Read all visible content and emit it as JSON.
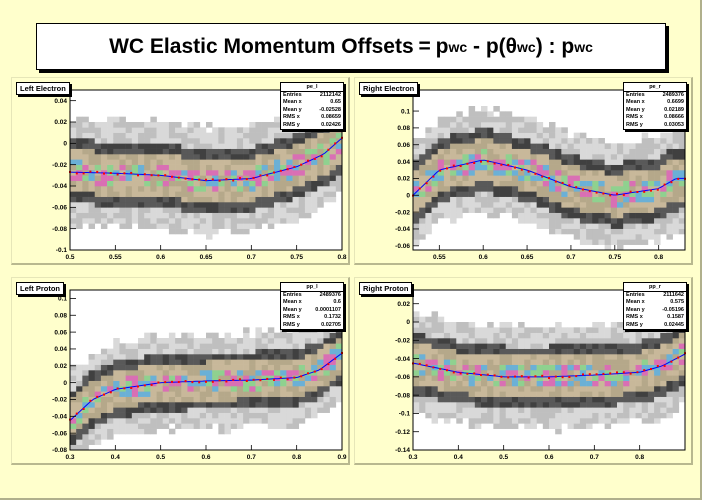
{
  "title": {
    "main": "WC Elastic Momentum Offsets",
    "eq": "=",
    "p1": "p",
    "s1": "wc",
    "minus": "- p(",
    "theta": "θ",
    "s2": "wc",
    "close": ") : p",
    "s3": "wc"
  },
  "pads": [
    {
      "label": "Left Electron",
      "stats": {
        "name": "pe_l",
        "rows": [
          [
            "Entries",
            "2112142"
          ],
          [
            "Mean x",
            "0.65"
          ],
          [
            "Mean y",
            "-0.02528"
          ],
          [
            "RMS x",
            "0.08659"
          ],
          [
            "RMS y",
            "0.02426"
          ]
        ]
      }
    },
    {
      "label": "Right Electron",
      "stats": {
        "name": "pe_r",
        "rows": [
          [
            "Entries",
            "2489376"
          ],
          [
            "Mean x",
            "0.6699"
          ],
          [
            "Mean y",
            "0.02189"
          ],
          [
            "RMS x",
            "0.08666"
          ],
          [
            "RMS y",
            "0.03053"
          ]
        ]
      }
    },
    {
      "label": "Left Proton",
      "stats": {
        "name": "pp_l",
        "rows": [
          [
            "Entries",
            "2489376"
          ],
          [
            "Mean x",
            "0.6"
          ],
          [
            "Mean y",
            "0.0001107"
          ],
          [
            "RMS x",
            "0.1732"
          ],
          [
            "RMS y",
            "0.02705"
          ]
        ]
      }
    },
    {
      "label": "Right Proton",
      "stats": {
        "name": "pp_r",
        "rows": [
          [
            "Entries",
            "2111642"
          ],
          [
            "Mean x",
            "0.575"
          ],
          [
            "Mean y",
            "-0.05196"
          ],
          [
            "RMS x",
            "0.1587"
          ],
          [
            "RMS y",
            "0.02445"
          ]
        ]
      }
    }
  ],
  "colors": {
    "fit": "#0000ff",
    "profile": "#ff0000",
    "low": "#c8c8c8",
    "mid": "#4d4d4d",
    "bg": "#ffffcc"
  },
  "chart_data": [
    {
      "type": "heatmap",
      "title": "Left Electron",
      "xlim": [
        0.5,
        0.8
      ],
      "ylim": [
        -0.1,
        0.05
      ],
      "xticks": [
        "0.5",
        "0.55",
        "0.6",
        "0.65",
        "0.7",
        "0.75",
        "0.8"
      ],
      "yticks": [
        "-0.1",
        "-0.08",
        "-0.06",
        "-0.04",
        "-0.02",
        "0",
        "0.02",
        "0.04"
      ],
      "xtickvals": [
        0.5,
        0.55,
        0.6,
        0.65,
        0.7,
        0.75,
        0.8
      ],
      "ytickvals": [
        -0.1,
        -0.08,
        -0.06,
        -0.04,
        -0.02,
        0,
        0.02,
        0.04
      ],
      "x0": 0.5,
      "x1": 0.8,
      "spread": 0.04,
      "trend_x": [
        0.5,
        0.55,
        0.6,
        0.65,
        0.7,
        0.75,
        0.78,
        0.8
      ],
      "trend_y": [
        -0.027,
        -0.028,
        -0.03,
        -0.035,
        -0.033,
        -0.022,
        -0.01,
        0.005
      ]
    },
    {
      "type": "heatmap",
      "title": "Right Electron",
      "xlim": [
        0.52,
        0.83
      ],
      "ylim": [
        -0.065,
        0.125
      ],
      "xticks": [
        "0.55",
        "0.6",
        "0.65",
        "0.7",
        "0.75",
        "0.8"
      ],
      "yticks": [
        "-0.06",
        "-0.04",
        "-0.02",
        "0",
        "0.02",
        "0.04",
        "0.06",
        "0.08",
        "0.1"
      ],
      "xtickvals": [
        0.55,
        0.6,
        0.65,
        0.7,
        0.75,
        0.8
      ],
      "ytickvals": [
        -0.06,
        -0.04,
        -0.02,
        0,
        0.02,
        0.04,
        0.06,
        0.08,
        0.1
      ],
      "x0": 0.52,
      "x1": 0.83,
      "spread": 0.05,
      "trend_x": [
        0.52,
        0.55,
        0.6,
        0.65,
        0.7,
        0.75,
        0.8,
        0.82
      ],
      "trend_y": [
        0.0,
        0.03,
        0.042,
        0.03,
        0.01,
        0.0,
        0.008,
        0.02
      ]
    },
    {
      "type": "heatmap",
      "title": "Left Proton",
      "xlim": [
        0.3,
        0.9
      ],
      "ylim": [
        -0.08,
        0.11
      ],
      "xticks": [
        "0.3",
        "0.4",
        "0.5",
        "0.6",
        "0.7",
        "0.8",
        "0.9"
      ],
      "yticks": [
        "-0.08",
        "-0.06",
        "-0.04",
        "-0.02",
        "0",
        "0.02",
        "0.04",
        "0.06",
        "0.08",
        "0.1"
      ],
      "xtickvals": [
        0.3,
        0.4,
        0.5,
        0.6,
        0.7,
        0.8,
        0.9
      ],
      "ytickvals": [
        -0.08,
        -0.06,
        -0.04,
        -0.02,
        0,
        0.02,
        0.04,
        0.06,
        0.08,
        0.1
      ],
      "x0": 0.3,
      "x1": 0.9,
      "spread": 0.045,
      "trend_x": [
        0.3,
        0.35,
        0.4,
        0.5,
        0.6,
        0.7,
        0.8,
        0.85,
        0.9
      ],
      "trend_y": [
        -0.045,
        -0.02,
        -0.008,
        0.0,
        0.002,
        0.003,
        0.006,
        0.015,
        0.035
      ]
    },
    {
      "type": "heatmap",
      "title": "Right Proton",
      "xlim": [
        0.3,
        0.9
      ],
      "ylim": [
        -0.14,
        0.035
      ],
      "xticks": [
        "0.3",
        "0.4",
        "0.5",
        "0.6",
        "0.7",
        "0.8"
      ],
      "yticks": [
        "-0.14",
        "-0.12",
        "-0.1",
        "-0.08",
        "-0.06",
        "-0.04",
        "-0.02",
        "0",
        "0.02"
      ],
      "xtickvals": [
        0.3,
        0.4,
        0.5,
        0.6,
        0.7,
        0.8
      ],
      "ytickvals": [
        -0.14,
        -0.12,
        -0.1,
        -0.08,
        -0.06,
        -0.04,
        -0.02,
        0,
        0.02
      ],
      "x0": 0.3,
      "x1": 0.9,
      "spread": 0.045,
      "trend_x": [
        0.3,
        0.35,
        0.4,
        0.5,
        0.6,
        0.7,
        0.8,
        0.85,
        0.9
      ],
      "trend_y": [
        -0.045,
        -0.05,
        -0.055,
        -0.06,
        -0.06,
        -0.058,
        -0.055,
        -0.048,
        -0.035
      ]
    }
  ]
}
